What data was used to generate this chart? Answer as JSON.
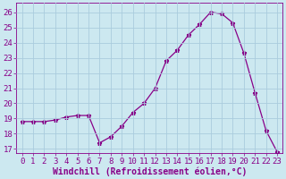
{
  "x": [
    0,
    1,
    2,
    3,
    4,
    5,
    6,
    7,
    8,
    9,
    10,
    11,
    12,
    13,
    14,
    15,
    16,
    17,
    18,
    19,
    20,
    21,
    22,
    23
  ],
  "y": [
    18.8,
    18.8,
    18.8,
    18.9,
    19.1,
    19.2,
    19.2,
    17.4,
    17.8,
    18.5,
    19.4,
    20.0,
    21.0,
    22.8,
    23.5,
    24.5,
    25.2,
    26.0,
    25.9,
    25.3,
    23.3,
    20.7,
    18.2,
    16.8
  ],
  "line_color": "#880088",
  "marker": "*",
  "marker_size": 3.5,
  "xlabel": "Windchill (Refroidissement éolien,°C)",
  "xlim": [
    -0.5,
    23.5
  ],
  "ylim": [
    16.7,
    26.6
  ],
  "yticks": [
    17,
    18,
    19,
    20,
    21,
    22,
    23,
    24,
    25,
    26
  ],
  "xticks": [
    0,
    1,
    2,
    3,
    4,
    5,
    6,
    7,
    8,
    9,
    10,
    11,
    12,
    13,
    14,
    15,
    16,
    17,
    18,
    19,
    20,
    21,
    22,
    23
  ],
  "bg_color": "#cce8f0",
  "grid_color": "#aaccdd",
  "tick_color": "#880088",
  "label_color": "#880088",
  "font_size": 6.5,
  "xlabel_fontsize": 7.0
}
